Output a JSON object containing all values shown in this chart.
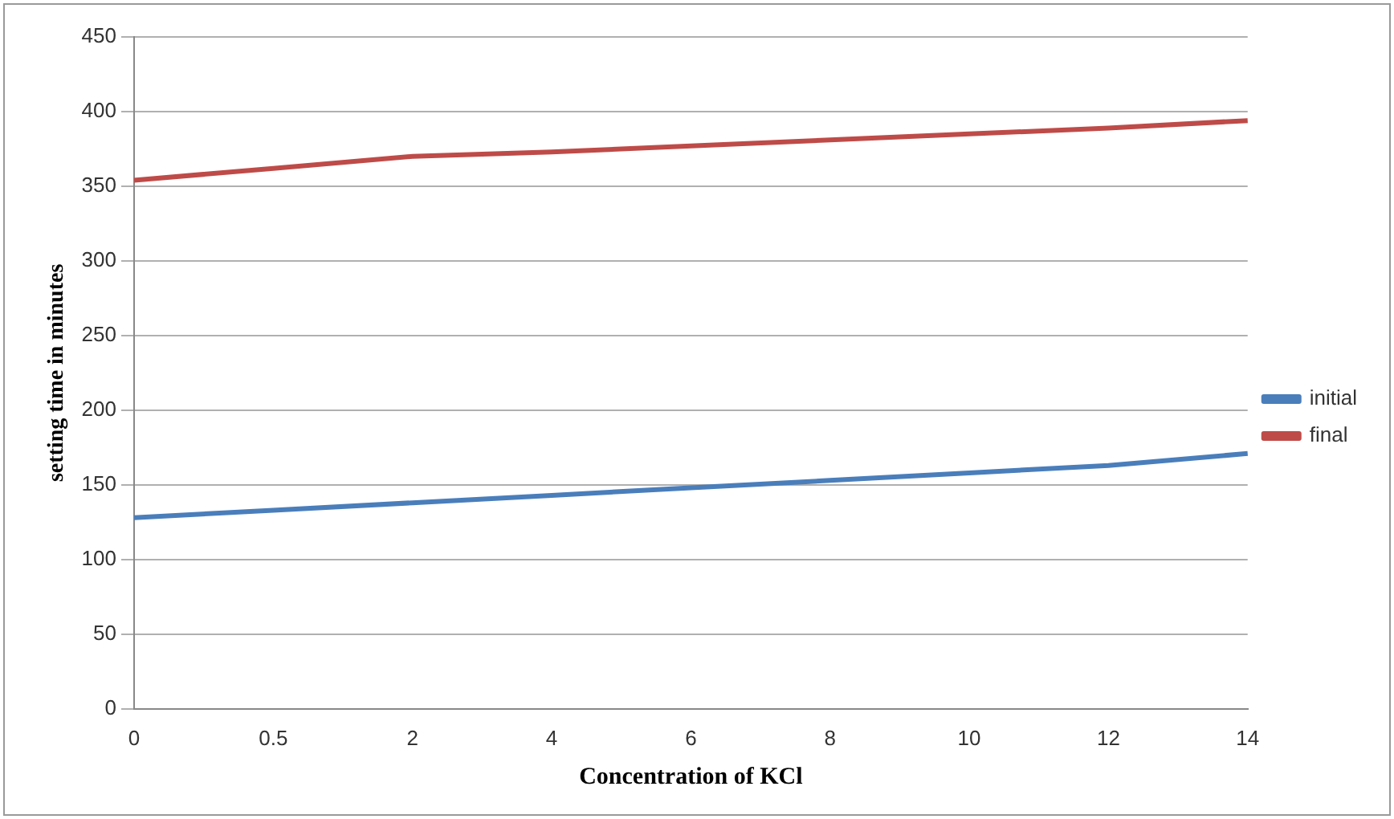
{
  "chart_data": {
    "type": "line",
    "xlabel": "Concentration of KCl",
    "ylabel": "setting time in minutes",
    "categories": [
      "0",
      "0.5",
      "2",
      "4",
      "6",
      "8",
      "10",
      "12",
      "14"
    ],
    "series": [
      {
        "name": "initial",
        "color": "#4a7ebb",
        "values": [
          128,
          133,
          138,
          143,
          148,
          153,
          158,
          163,
          171
        ]
      },
      {
        "name": "final",
        "color": "#be4b48",
        "values": [
          354,
          362,
          370,
          373,
          377,
          381,
          385,
          389,
          394
        ]
      }
    ],
    "ylim": [
      0,
      450
    ],
    "yticks": [
      0,
      50,
      100,
      150,
      200,
      250,
      300,
      350,
      400,
      450
    ],
    "grid": "y",
    "legend": "right",
    "marker": "none",
    "line_style": "solid"
  }
}
